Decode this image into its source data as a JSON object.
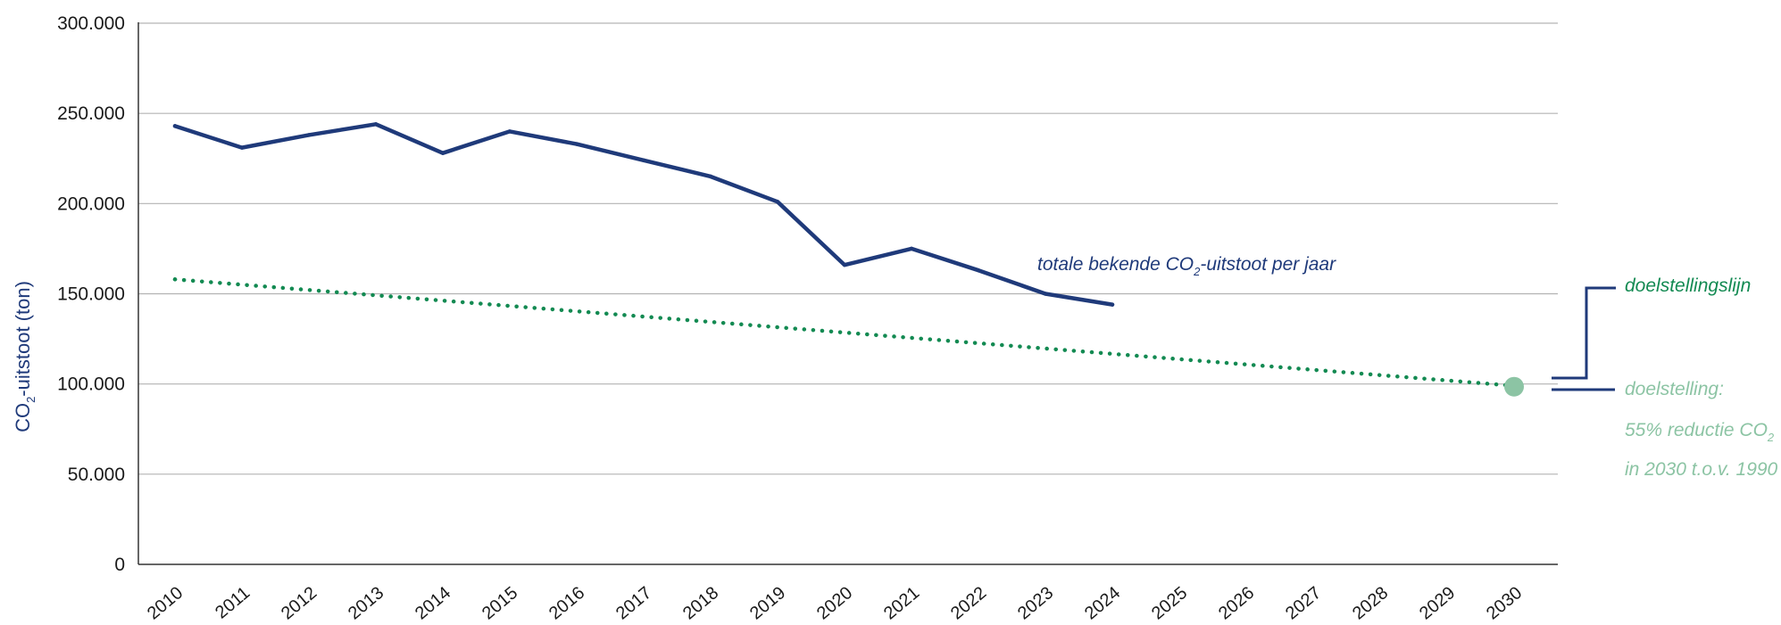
{
  "colors": {
    "actual": "#1f3a7a",
    "target_line": "#138a52",
    "target_point": "#8cc4a4",
    "target_text": "#8cc4a4",
    "grid": "#b3b3b3",
    "axis": "#333333"
  },
  "chart_data": {
    "type": "line",
    "xlabel": "",
    "ylabel": {
      "prefix": "CO",
      "sub": "2",
      "suffix": "-uitstoot (ton)"
    },
    "ylim": [
      0,
      300000
    ],
    "y_ticks": [
      "0",
      "50.000",
      "100.000",
      "150.000",
      "200.000",
      "250.000",
      "300.000"
    ],
    "grid": true,
    "categories": [
      "2010",
      "2011",
      "2012",
      "2013",
      "2014",
      "2015",
      "2016",
      "2017",
      "2018",
      "2019",
      "2020",
      "2021",
      "2022",
      "2023",
      "2024",
      "2025",
      "2026",
      "2027",
      "2028",
      "2029",
      "2030"
    ],
    "series": [
      {
        "name": {
          "prefix": "totale bekende CO",
          "sub": "2",
          "suffix": "-uitstoot per jaar"
        },
        "style": "solid",
        "x": [
          "2010",
          "2011",
          "2012",
          "2013",
          "2014",
          "2015",
          "2016",
          "2017",
          "2018",
          "2019",
          "2020",
          "2021",
          "2022",
          "2023",
          "2024"
        ],
        "values": [
          243000,
          231000,
          238000,
          244000,
          228000,
          240000,
          233000,
          224000,
          215000,
          201000,
          166000,
          175000,
          163000,
          150000,
          144000
        ]
      },
      {
        "name": "doelstellingslijn",
        "style": "dotted",
        "x": [
          "2010",
          "2030"
        ],
        "values": [
          158000,
          99000
        ]
      }
    ],
    "target_point": {
      "x": "2030",
      "value": 98500
    },
    "target_label": {
      "line1": "doelstelling:",
      "line2": {
        "prefix": "55% reductie CO",
        "sub": "2"
      },
      "line3": "in 2030 t.o.v. 1990"
    }
  }
}
